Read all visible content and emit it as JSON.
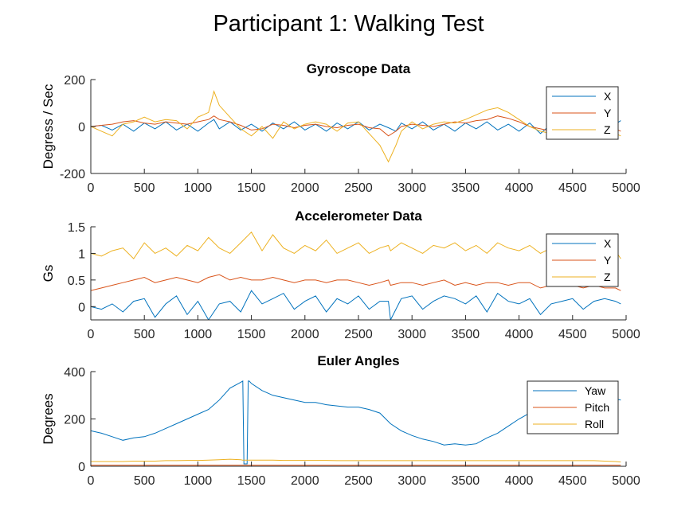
{
  "figure": {
    "title": "Participant 1: Walking Test"
  },
  "chart_data": [
    {
      "type": "line",
      "title": "Gyroscope Data",
      "xlabel": "",
      "ylabel": "Degress / Sec",
      "xlim": [
        0,
        5000
      ],
      "ylim": [
        -200,
        200
      ],
      "xticks": [
        0,
        500,
        1000,
        1500,
        2000,
        2500,
        3000,
        3500,
        4000,
        4500,
        5000
      ],
      "yticks": [
        -200,
        0,
        200
      ],
      "legend_position": "top-right",
      "grid": false,
      "x": [
        0,
        100,
        200,
        300,
        400,
        500,
        600,
        700,
        800,
        900,
        1000,
        1100,
        1150,
        1200,
        1300,
        1400,
        1500,
        1600,
        1700,
        1800,
        1900,
        2000,
        2100,
        2200,
        2300,
        2400,
        2500,
        2600,
        2700,
        2780,
        2850,
        2900,
        3000,
        3100,
        3200,
        3300,
        3400,
        3500,
        3600,
        3700,
        3800,
        3900,
        4000,
        4100,
        4200,
        4300,
        4400,
        4500,
        4600,
        4700,
        4800,
        4900,
        4950
      ],
      "series": [
        {
          "name": "X",
          "color": "#0072BD",
          "values": [
            0,
            5,
            -15,
            10,
            -20,
            15,
            -10,
            20,
            -15,
            10,
            -20,
            15,
            30,
            -10,
            20,
            -15,
            10,
            -20,
            15,
            -10,
            20,
            -15,
            10,
            -20,
            15,
            -10,
            20,
            -15,
            10,
            -5,
            -20,
            15,
            -10,
            20,
            -15,
            10,
            -20,
            15,
            -10,
            20,
            -15,
            10,
            -20,
            15,
            -30,
            10,
            -15,
            20,
            -10,
            15,
            -20,
            10,
            25
          ]
        },
        {
          "name": "Y",
          "color": "#D95319",
          "values": [
            0,
            5,
            10,
            20,
            25,
            15,
            10,
            20,
            15,
            10,
            20,
            30,
            45,
            30,
            20,
            5,
            -15,
            -10,
            10,
            5,
            -5,
            5,
            10,
            0,
            -5,
            5,
            10,
            -5,
            -10,
            -40,
            -20,
            0,
            10,
            5,
            0,
            10,
            20,
            15,
            25,
            30,
            45,
            35,
            20,
            0,
            -10,
            -20,
            -5,
            0,
            -10,
            0,
            -15,
            -10,
            -20
          ]
        },
        {
          "name": "Z",
          "color": "#EDB120",
          "values": [
            0,
            -20,
            -40,
            10,
            20,
            40,
            20,
            30,
            25,
            -10,
            40,
            60,
            150,
            90,
            40,
            -10,
            -40,
            0,
            -50,
            20,
            -10,
            10,
            20,
            10,
            -20,
            15,
            20,
            -30,
            -80,
            -150,
            -80,
            -20,
            20,
            -10,
            10,
            20,
            15,
            30,
            50,
            70,
            80,
            60,
            30,
            0,
            -20,
            -30,
            -10,
            5,
            -10,
            10,
            -20,
            -30,
            -40
          ]
        }
      ]
    },
    {
      "type": "line",
      "title": "Accelerometer Data",
      "xlabel": "",
      "ylabel": "Gs",
      "xlim": [
        0,
        5000
      ],
      "ylim": [
        -0.25,
        1.5
      ],
      "xticks": [
        0,
        500,
        1000,
        1500,
        2000,
        2500,
        3000,
        3500,
        4000,
        4500,
        5000
      ],
      "yticks": [
        0,
        0.5,
        1,
        1.5
      ],
      "legend_position": "top-right",
      "grid": false,
      "x": [
        0,
        100,
        200,
        300,
        400,
        500,
        600,
        700,
        800,
        900,
        1000,
        1100,
        1200,
        1300,
        1400,
        1500,
        1600,
        1700,
        1800,
        1900,
        2000,
        2100,
        2200,
        2300,
        2400,
        2500,
        2600,
        2700,
        2780,
        2800,
        2900,
        3000,
        3100,
        3200,
        3300,
        3400,
        3500,
        3600,
        3700,
        3800,
        3900,
        4000,
        4100,
        4200,
        4300,
        4400,
        4500,
        4600,
        4700,
        4800,
        4900,
        4950
      ],
      "series": [
        {
          "name": "X",
          "color": "#0072BD",
          "values": [
            0,
            -0.05,
            0.05,
            -0.1,
            0.1,
            0.15,
            -0.2,
            0.05,
            0.2,
            -0.15,
            0.1,
            -0.25,
            0.05,
            0.1,
            -0.1,
            0.3,
            0.05,
            0.15,
            0.25,
            -0.05,
            0.1,
            0.2,
            -0.1,
            0.15,
            0.05,
            0.2,
            -0.05,
            0.1,
            0.1,
            -0.25,
            0.15,
            0.2,
            -0.05,
            0.1,
            0.2,
            0.15,
            0.05,
            0.2,
            -0.1,
            0.25,
            0.1,
            0.05,
            0.15,
            -0.15,
            0.05,
            0.1,
            0.15,
            -0.05,
            0.1,
            0.15,
            0.1,
            0.05
          ]
        },
        {
          "name": "Y",
          "color": "#D95319",
          "values": [
            0.3,
            0.35,
            0.4,
            0.45,
            0.5,
            0.55,
            0.45,
            0.5,
            0.55,
            0.5,
            0.45,
            0.55,
            0.6,
            0.5,
            0.55,
            0.5,
            0.5,
            0.55,
            0.5,
            0.45,
            0.5,
            0.5,
            0.45,
            0.5,
            0.5,
            0.45,
            0.4,
            0.45,
            0.5,
            0.4,
            0.45,
            0.45,
            0.4,
            0.45,
            0.5,
            0.4,
            0.45,
            0.4,
            0.45,
            0.45,
            0.4,
            0.45,
            0.45,
            0.35,
            0.4,
            0.4,
            0.4,
            0.35,
            0.4,
            0.35,
            0.35,
            0.3
          ]
        },
        {
          "name": "Z",
          "color": "#EDB120",
          "values": [
            1,
            0.95,
            1.05,
            1.1,
            0.9,
            1.2,
            1.0,
            1.1,
            0.95,
            1.15,
            1.05,
            1.3,
            1.1,
            1.0,
            1.2,
            1.4,
            1.05,
            1.35,
            1.1,
            1.0,
            1.15,
            1.05,
            1.25,
            1.0,
            1.1,
            1.2,
            1.0,
            1.1,
            1.15,
            1.05,
            1.2,
            1.1,
            1.0,
            1.15,
            1.1,
            1.2,
            1.05,
            1.15,
            1.0,
            1.2,
            1.1,
            1.05,
            1.15,
            1.0,
            1.1,
            1.15,
            1.05,
            1.1,
            1.0,
            1.1,
            1.05,
            0.9
          ]
        }
      ]
    },
    {
      "type": "line",
      "title": "Euler Angles",
      "xlabel": "",
      "ylabel": "Degrees",
      "xlim": [
        0,
        5000
      ],
      "ylim": [
        0,
        400
      ],
      "xticks": [
        0,
        500,
        1000,
        1500,
        2000,
        2500,
        3000,
        3500,
        4000,
        4500,
        5000
      ],
      "yticks": [
        0,
        200,
        400
      ],
      "legend_position": "top-right",
      "grid": false,
      "x": [
        0,
        100,
        200,
        300,
        400,
        500,
        600,
        700,
        800,
        900,
        1000,
        1100,
        1200,
        1300,
        1400,
        1420,
        1430,
        1460,
        1470,
        1480,
        1500,
        1600,
        1700,
        1800,
        1900,
        2000,
        2100,
        2200,
        2300,
        2400,
        2500,
        2600,
        2700,
        2800,
        2900,
        3000,
        3100,
        3200,
        3300,
        3400,
        3500,
        3600,
        3700,
        3800,
        3900,
        4000,
        4100,
        4200,
        4300,
        4400,
        4500,
        4600,
        4700,
        4800,
        4900,
        4950
      ],
      "series": [
        {
          "name": "Yaw",
          "color": "#0072BD",
          "values": [
            150,
            140,
            125,
            110,
            120,
            125,
            140,
            160,
            180,
            200,
            220,
            240,
            280,
            330,
            355,
            360,
            10,
            10,
            360,
            360,
            350,
            320,
            300,
            290,
            280,
            270,
            270,
            260,
            255,
            250,
            250,
            240,
            225,
            180,
            150,
            130,
            115,
            105,
            90,
            95,
            90,
            95,
            120,
            140,
            170,
            200,
            225,
            245,
            265,
            280,
            290,
            300,
            300,
            295,
            285,
            280
          ]
        },
        {
          "name": "Pitch",
          "color": "#D95319",
          "values": [
            5,
            5,
            5,
            5,
            5,
            5,
            5,
            5,
            5,
            5,
            5,
            5,
            5,
            5,
            5,
            5,
            5,
            5,
            5,
            5,
            5,
            5,
            5,
            5,
            5,
            5,
            5,
            5,
            5,
            5,
            5,
            5,
            5,
            5,
            5,
            5,
            5,
            5,
            5,
            5,
            5,
            5,
            5,
            5,
            5,
            5,
            5,
            5,
            5,
            5,
            5,
            5,
            5,
            5,
            5,
            5
          ]
        },
        {
          "name": "Roll",
          "color": "#EDB120",
          "values": [
            20,
            20,
            20,
            20,
            22,
            22,
            22,
            24,
            24,
            25,
            25,
            26,
            28,
            30,
            28,
            26,
            26,
            26,
            26,
            26,
            26,
            26,
            26,
            25,
            25,
            25,
            25,
            25,
            24,
            24,
            24,
            24,
            24,
            24,
            24,
            24,
            24,
            24,
            24,
            24,
            24,
            24,
            24,
            24,
            24,
            24,
            24,
            24,
            24,
            24,
            24,
            24,
            24,
            22,
            20,
            18
          ]
        }
      ]
    }
  ]
}
